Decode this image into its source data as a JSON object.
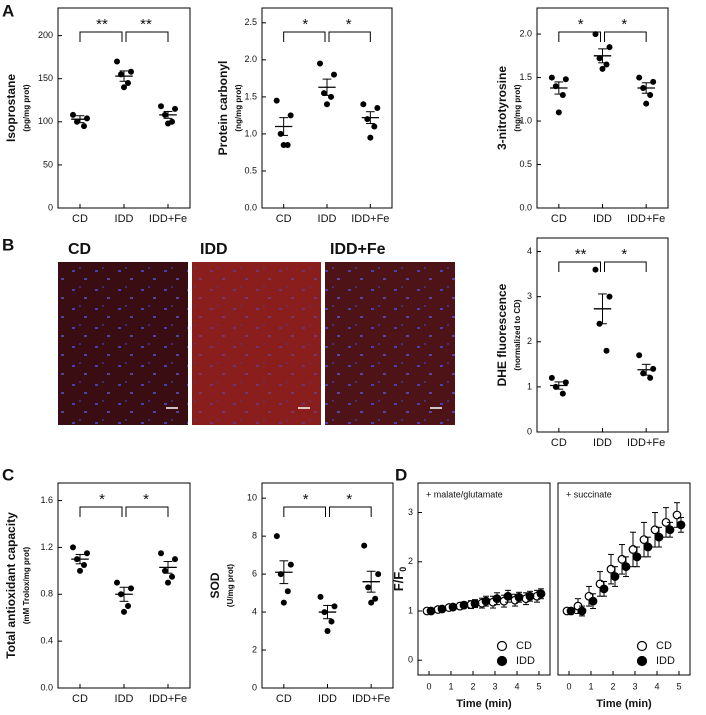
{
  "panel_labels": [
    "A",
    "B",
    "C",
    "D"
  ],
  "images": [
    {
      "label": "CD"
    },
    {
      "label": "IDD"
    },
    {
      "label": "IDD+Fe"
    }
  ],
  "chart_data": [
    {
      "type": "dot",
      "ylabel": "Isoprostane",
      "yunit": "(pg/mg prot)",
      "categories": [
        "CD",
        "IDD",
        "IDD+Fe"
      ],
      "points": [
        [
          108,
          104,
          100,
          95
        ],
        [
          170,
          158,
          155,
          145,
          140
        ],
        [
          118,
          115,
          108,
          100,
          98
        ]
      ],
      "means": [
        103,
        153,
        108
      ],
      "errors": [
        4,
        6,
        4
      ],
      "ylim": [
        0,
        232
      ],
      "yticks": [
        0,
        50,
        100,
        150,
        200
      ],
      "annotations": [
        {
          "label": "**",
          "between": [
            0,
            1
          ]
        },
        {
          "label": "**",
          "between": [
            1,
            2
          ]
        }
      ]
    },
    {
      "type": "dot",
      "ylabel": "Protein carbonyl",
      "yunit": "(ng/mg prot)",
      "categories": [
        "CD",
        "IDD",
        "IDD+Fe"
      ],
      "points": [
        [
          1.45,
          1.25,
          1.0,
          0.85,
          0.85
        ],
        [
          1.95,
          1.8,
          1.55,
          1.5,
          1.4
        ],
        [
          1.4,
          1.35,
          1.2,
          1.1,
          0.95
        ]
      ],
      "means": [
        1.1,
        1.63,
        1.22
      ],
      "errors": [
        0.12,
        0.11,
        0.08
      ],
      "ylim": [
        0,
        2.7
      ],
      "yticks": [
        {
          "value": 0,
          "label": "0.0"
        },
        0.5,
        {
          "value": 1,
          "label": "1.0"
        },
        1.5,
        {
          "value": 2,
          "label": "2.0"
        },
        2.5
      ],
      "annotations": [
        {
          "label": "*",
          "between": [
            0,
            1
          ]
        },
        {
          "label": "*",
          "between": [
            1,
            2
          ]
        }
      ]
    },
    {
      "type": "dot",
      "ylabel": "3-nitrotyrosine",
      "yunit": "(ng/mg prot)",
      "categories": [
        "CD",
        "IDD",
        "IDD+Fe"
      ],
      "points": [
        [
          1.5,
          1.48,
          1.4,
          1.3,
          1.1
        ],
        [
          2.0,
          1.85,
          1.72,
          1.65,
          1.6
        ],
        [
          1.5,
          1.45,
          1.38,
          1.3,
          1.2
        ]
      ],
      "means": [
        1.38,
        1.75,
        1.38
      ],
      "errors": [
        0.07,
        0.08,
        0.06
      ],
      "ylim": [
        0,
        2.3
      ],
      "yticks": [
        {
          "value": 0,
          "label": "0.0"
        },
        0.5,
        {
          "value": 1,
          "label": "1.0"
        },
        1.5,
        {
          "value": 2,
          "label": "2.0"
        }
      ],
      "annotations": [
        {
          "label": "*",
          "between": [
            0,
            1
          ]
        },
        {
          "label": "*",
          "between": [
            1,
            2
          ]
        }
      ]
    },
    {
      "type": "dot",
      "ylabel": "DHE fluorescence",
      "yunit": "(normalized to CD)",
      "categories": [
        "CD",
        "IDD",
        "IDD+Fe"
      ],
      "points": [
        [
          1.2,
          1.1,
          1.0,
          0.85
        ],
        [
          3.6,
          3.0,
          2.4,
          1.8
        ],
        [
          1.7,
          1.4,
          1.3,
          1.2
        ]
      ],
      "means": [
        1.03,
        2.73,
        1.38
      ],
      "errors": [
        0.08,
        0.33,
        0.12
      ],
      "ylim": [
        0,
        4.3
      ],
      "yticks": [
        0,
        1,
        2,
        3,
        4
      ],
      "annotations": [
        {
          "label": "**",
          "between": [
            0,
            1
          ]
        },
        {
          "label": "*",
          "between": [
            1,
            2
          ]
        }
      ]
    },
    {
      "type": "dot",
      "ylabel": "Total antioxidant capacity",
      "yunit": "(mM Trolox/mg prot)",
      "categories": [
        "CD",
        "IDD",
        "IDD+Fe"
      ],
      "points": [
        [
          1.2,
          1.15,
          1.1,
          1.05,
          1.0
        ],
        [
          0.9,
          0.85,
          0.8,
          0.7,
          0.65
        ],
        [
          1.15,
          1.1,
          1.0,
          0.95,
          0.9
        ]
      ],
      "means": [
        1.1,
        0.8,
        1.03
      ],
      "errors": [
        0.04,
        0.06,
        0.05
      ],
      "ylim": [
        0,
        1.75
      ],
      "yticks": [
        {
          "value": 0,
          "label": "0.0"
        },
        0.4,
        0.8,
        1.2,
        1.6
      ],
      "annotations": [
        {
          "label": "*",
          "between": [
            0,
            1
          ]
        },
        {
          "label": "*",
          "between": [
            1,
            2
          ]
        }
      ]
    },
    {
      "type": "dot",
      "ylabel": "SOD",
      "yunit": "(U/mg prot)",
      "categories": [
        "CD",
        "IDD",
        "IDD+Fe"
      ],
      "points": [
        [
          8,
          6.5,
          6,
          5.1,
          4.5
        ],
        [
          4.8,
          4.3,
          4.0,
          3.5,
          3.0
        ],
        [
          7.5,
          6.0,
          5.3,
          4.7,
          4.5
        ]
      ],
      "means": [
        6.1,
        4.0,
        5.6
      ],
      "errors": [
        0.6,
        0.35,
        0.55
      ],
      "ylim": [
        0,
        10.8
      ],
      "yticks": [
        0,
        2,
        4,
        6,
        8,
        10
      ],
      "annotations": [
        {
          "label": "*",
          "between": [
            0,
            1
          ]
        },
        {
          "label": "*",
          "between": [
            1,
            2
          ]
        }
      ]
    },
    {
      "type": "line",
      "title": "+ malate/glutamate",
      "ylabel": "F/F",
      "ylabel_sub": "0",
      "xlabel": "Time (min)",
      "x": [
        0,
        0.5,
        1,
        1.5,
        2,
        2.5,
        3,
        3.5,
        4,
        4.5,
        5
      ],
      "series": [
        {
          "name": "CD",
          "marker": "open",
          "color": "#000000",
          "values": [
            1,
            1.03,
            1.07,
            1.1,
            1.13,
            1.16,
            1.18,
            1.2,
            1.22,
            1.25,
            1.3
          ],
          "errors": [
            0.03,
            0.04,
            0.05,
            0.06,
            0.08,
            0.1,
            0.12,
            0.12,
            0.12,
            0.12,
            0.12
          ]
        },
        {
          "name": "IDD",
          "marker": "filled",
          "color": "#000000",
          "values": [
            1,
            1.04,
            1.08,
            1.12,
            1.15,
            1.2,
            1.25,
            1.3,
            1.28,
            1.3,
            1.35
          ],
          "errors": [
            0.03,
            0.04,
            0.05,
            0.06,
            0.08,
            0.1,
            0.12,
            0.12,
            0.1,
            0.1,
            0.1
          ]
        }
      ],
      "xlim": [
        -0.5,
        5.5
      ],
      "xticks": [
        0,
        1,
        2,
        3,
        4,
        5
      ],
      "ylim": [
        -0.3,
        3.6
      ],
      "yticks": [
        0,
        1,
        2,
        3
      ],
      "legend": "lower right"
    },
    {
      "type": "line",
      "title": "+ succinate",
      "xlabel": "Time (min)",
      "x": [
        0,
        0.5,
        1,
        1.5,
        2,
        2.5,
        3,
        3.5,
        4,
        4.5,
        5
      ],
      "series": [
        {
          "name": "CD",
          "marker": "open",
          "color": "#000000",
          "values": [
            1,
            1.1,
            1.3,
            1.55,
            1.85,
            2.05,
            2.25,
            2.45,
            2.65,
            2.8,
            2.95
          ],
          "errors": [
            0.03,
            0.15,
            0.2,
            0.25,
            0.3,
            0.3,
            0.35,
            0.35,
            0.35,
            0.3,
            0.25
          ]
        },
        {
          "name": "IDD",
          "marker": "filled",
          "color": "#000000",
          "values": [
            1,
            1.0,
            1.2,
            1.45,
            1.7,
            1.9,
            2.1,
            2.3,
            2.5,
            2.65,
            2.75
          ],
          "errors": [
            0.03,
            0.1,
            0.15,
            0.15,
            0.2,
            0.2,
            0.2,
            0.2,
            0.2,
            0.15,
            0.15
          ]
        }
      ],
      "xlim": [
        -0.5,
        5.5
      ],
      "xticks": [
        0,
        1,
        2,
        3,
        4,
        5
      ],
      "ylim": [
        -0.3,
        3.6
      ],
      "legend": "lower right"
    }
  ]
}
